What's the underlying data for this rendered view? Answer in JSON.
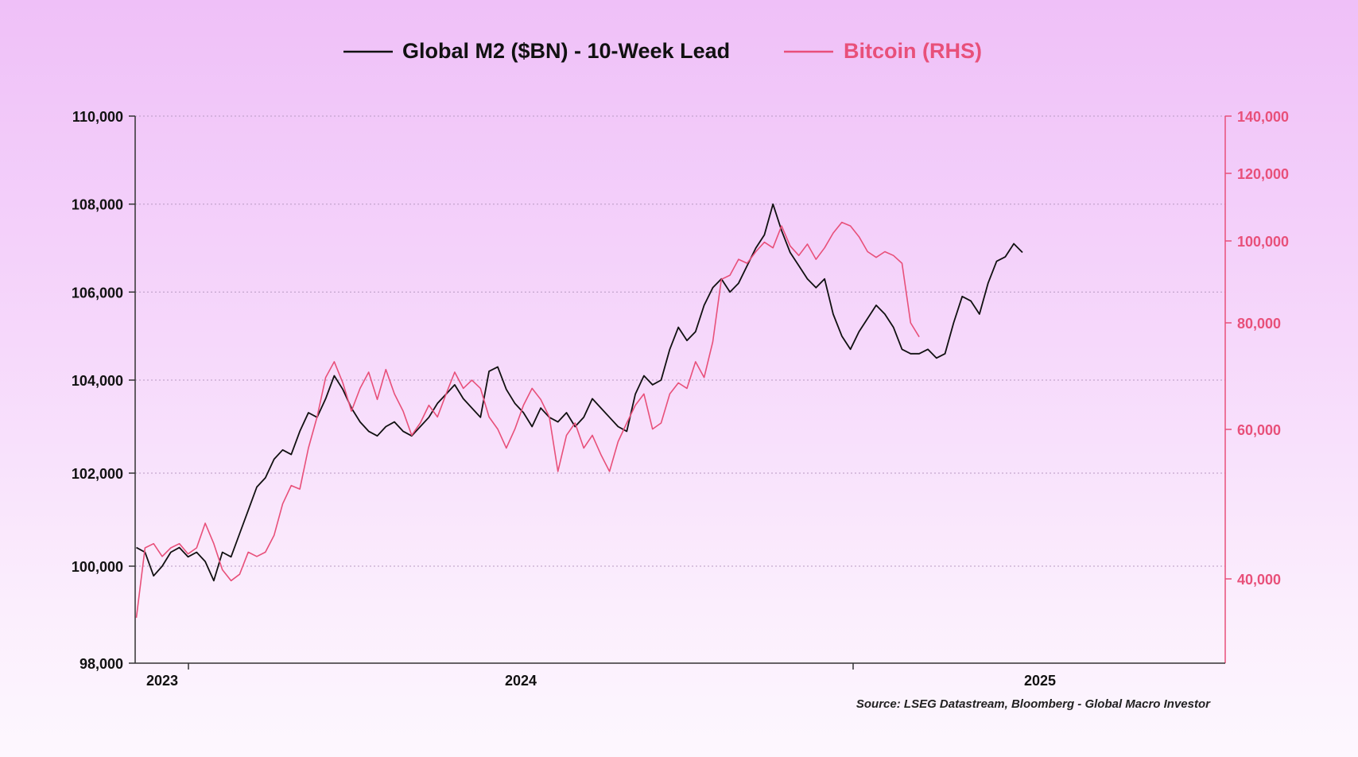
{
  "chart_data": {
    "type": "line",
    "legend": {
      "position": "top-center",
      "items": [
        {
          "label": "Global M2 ($BN) - 10-Week Lead",
          "color": "#111111"
        },
        {
          "label": "Bitcoin (RHS)",
          "color": "#e8507a"
        }
      ]
    },
    "left_axis": {
      "ticks": [
        "110,000",
        "108,000",
        "106,000",
        "104,000",
        "102,000",
        "100,000",
        "98,000"
      ],
      "tick_values": [
        110000,
        108000,
        106000,
        104000,
        102000,
        100000,
        98000
      ],
      "range": [
        98000,
        110000
      ],
      "color": "#111111"
    },
    "right_axis": {
      "scale": "log",
      "ticks": [
        "140,000",
        "120,000",
        "100,000",
        "80,000",
        "60,000",
        "40,000"
      ],
      "tick_values": [
        140000,
        120000,
        100000,
        80000,
        60000,
        40000
      ],
      "range": [
        31000,
        140000
      ],
      "color": "#e8507a"
    },
    "x_axis": {
      "range": [
        "2022-12-15",
        "2025-05-20"
      ],
      "tick_dates": [
        "2023-01-01",
        "2025-01-01"
      ],
      "labels": [
        {
          "text": "2023",
          "date": "2023-01-15"
        },
        {
          "text": "2024",
          "date": "2024-01-01"
        },
        {
          "text": "2025",
          "date": "2025-01-05"
        }
      ]
    },
    "grid": {
      "horizontal": true,
      "style": "dotted"
    },
    "series": [
      {
        "name": "Global M2 ($BN) - 10-Week Lead",
        "axis": "left",
        "color": "#111111",
        "points": [
          [
            "2022-12-16",
            100400
          ],
          [
            "2022-12-23",
            100300
          ],
          [
            "2022-12-30",
            99800
          ],
          [
            "2023-01-06",
            100000
          ],
          [
            "2023-01-13",
            100300
          ],
          [
            "2023-01-20",
            100400
          ],
          [
            "2023-01-27",
            100200
          ],
          [
            "2023-02-03",
            100300
          ],
          [
            "2023-02-10",
            100100
          ],
          [
            "2023-02-17",
            99700
          ],
          [
            "2023-02-24",
            100300
          ],
          [
            "2023-03-03",
            100200
          ],
          [
            "2023-03-10",
            100700
          ],
          [
            "2023-03-17",
            101200
          ],
          [
            "2023-03-24",
            101700
          ],
          [
            "2023-03-31",
            101900
          ],
          [
            "2023-04-07",
            102300
          ],
          [
            "2023-04-14",
            102500
          ],
          [
            "2023-04-21",
            102400
          ],
          [
            "2023-04-28",
            102900
          ],
          [
            "2023-05-05",
            103300
          ],
          [
            "2023-05-12",
            103200
          ],
          [
            "2023-05-19",
            103600
          ],
          [
            "2023-05-26",
            104100
          ],
          [
            "2023-06-02",
            103800
          ],
          [
            "2023-06-09",
            103400
          ],
          [
            "2023-06-16",
            103100
          ],
          [
            "2023-06-23",
            102900
          ],
          [
            "2023-06-30",
            102800
          ],
          [
            "2023-07-07",
            103000
          ],
          [
            "2023-07-14",
            103100
          ],
          [
            "2023-07-21",
            102900
          ],
          [
            "2023-07-28",
            102800
          ],
          [
            "2023-08-04",
            103000
          ],
          [
            "2023-08-11",
            103200
          ],
          [
            "2023-08-18",
            103500
          ],
          [
            "2023-08-25",
            103700
          ],
          [
            "2023-09-01",
            103900
          ],
          [
            "2023-09-08",
            103600
          ],
          [
            "2023-09-15",
            103400
          ],
          [
            "2023-09-22",
            103200
          ],
          [
            "2023-09-29",
            104200
          ],
          [
            "2023-10-06",
            104300
          ],
          [
            "2023-10-13",
            103800
          ],
          [
            "2023-10-20",
            103500
          ],
          [
            "2023-10-27",
            103300
          ],
          [
            "2023-11-03",
            103000
          ],
          [
            "2023-11-10",
            103400
          ],
          [
            "2023-11-17",
            103200
          ],
          [
            "2023-11-24",
            103100
          ],
          [
            "2023-12-01",
            103300
          ],
          [
            "2023-12-08",
            103000
          ],
          [
            "2023-12-15",
            103200
          ],
          [
            "2023-12-22",
            103600
          ],
          [
            "2023-12-29",
            103400
          ],
          [
            "2024-01-05",
            103200
          ],
          [
            "2024-01-12",
            103000
          ],
          [
            "2024-01-19",
            102900
          ],
          [
            "2024-01-26",
            103700
          ],
          [
            "2024-02-02",
            104100
          ],
          [
            "2024-02-09",
            103900
          ],
          [
            "2024-02-16",
            104000
          ],
          [
            "2024-02-23",
            104700
          ],
          [
            "2024-03-01",
            105200
          ],
          [
            "2024-03-08",
            104900
          ],
          [
            "2024-03-15",
            105100
          ],
          [
            "2024-03-22",
            105700
          ],
          [
            "2024-03-29",
            106100
          ],
          [
            "2024-04-05",
            106300
          ],
          [
            "2024-04-12",
            106000
          ],
          [
            "2024-04-19",
            106200
          ],
          [
            "2024-04-26",
            106600
          ],
          [
            "2024-05-03",
            107000
          ],
          [
            "2024-05-10",
            107300
          ],
          [
            "2024-05-17",
            108000
          ],
          [
            "2024-05-24",
            107400
          ],
          [
            "2024-05-31",
            106900
          ],
          [
            "2024-06-07",
            106600
          ],
          [
            "2024-06-14",
            106300
          ],
          [
            "2024-06-21",
            106100
          ],
          [
            "2024-06-28",
            106300
          ],
          [
            "2024-07-05",
            105500
          ],
          [
            "2024-07-12",
            105000
          ],
          [
            "2024-07-19",
            104700
          ],
          [
            "2024-07-26",
            105100
          ],
          [
            "2024-08-02",
            105400
          ],
          [
            "2024-08-09",
            105700
          ],
          [
            "2024-08-16",
            105500
          ],
          [
            "2024-08-23",
            105200
          ],
          [
            "2024-08-30",
            104700
          ],
          [
            "2024-09-06",
            104600
          ],
          [
            "2024-09-13",
            104600
          ],
          [
            "2024-09-20",
            104700
          ],
          [
            "2024-09-27",
            104500
          ],
          [
            "2024-10-04",
            104600
          ],
          [
            "2024-10-11",
            105300
          ],
          [
            "2024-10-18",
            105900
          ],
          [
            "2024-10-25",
            105800
          ],
          [
            "2024-11-01",
            105500
          ],
          [
            "2024-11-08",
            106200
          ],
          [
            "2024-11-15",
            106700
          ],
          [
            "2024-11-22",
            106800
          ],
          [
            "2024-11-29",
            107100
          ],
          [
            "2024-12-06",
            106900
          ]
        ]
      },
      {
        "name": "Bitcoin (RHS)",
        "axis": "right",
        "color": "#e8507a",
        "points": [
          [
            "2022-12-16",
            36000
          ],
          [
            "2022-12-23",
            43500
          ],
          [
            "2022-12-30",
            44000
          ],
          [
            "2023-01-06",
            42500
          ],
          [
            "2023-01-13",
            43500
          ],
          [
            "2023-01-20",
            44000
          ],
          [
            "2023-01-27",
            42800
          ],
          [
            "2023-02-03",
            43500
          ],
          [
            "2023-02-10",
            46500
          ],
          [
            "2023-02-17",
            44000
          ],
          [
            "2023-02-24",
            41000
          ],
          [
            "2023-03-03",
            39800
          ],
          [
            "2023-03-10",
            40500
          ],
          [
            "2023-03-17",
            43000
          ],
          [
            "2023-03-24",
            42500
          ],
          [
            "2023-03-31",
            43000
          ],
          [
            "2023-04-07",
            45000
          ],
          [
            "2023-04-14",
            49000
          ],
          [
            "2023-04-21",
            51500
          ],
          [
            "2023-04-28",
            51000
          ],
          [
            "2023-05-05",
            57000
          ],
          [
            "2023-05-12",
            62000
          ],
          [
            "2023-05-19",
            69000
          ],
          [
            "2023-05-26",
            72000
          ],
          [
            "2023-06-02",
            68000
          ],
          [
            "2023-06-09",
            63000
          ],
          [
            "2023-06-16",
            67000
          ],
          [
            "2023-06-23",
            70000
          ],
          [
            "2023-06-30",
            65000
          ],
          [
            "2023-07-07",
            70500
          ],
          [
            "2023-07-14",
            66000
          ],
          [
            "2023-07-21",
            63000
          ],
          [
            "2023-07-28",
            59000
          ],
          [
            "2023-08-04",
            61000
          ],
          [
            "2023-08-11",
            64000
          ],
          [
            "2023-08-18",
            62000
          ],
          [
            "2023-08-25",
            66000
          ],
          [
            "2023-09-01",
            70000
          ],
          [
            "2023-09-08",
            67000
          ],
          [
            "2023-09-15",
            68500
          ],
          [
            "2023-09-22",
            67000
          ],
          [
            "2023-09-29",
            62000
          ],
          [
            "2023-10-06",
            60000
          ],
          [
            "2023-10-13",
            57000
          ],
          [
            "2023-10-20",
            60000
          ],
          [
            "2023-10-27",
            64000
          ],
          [
            "2023-11-03",
            67000
          ],
          [
            "2023-11-10",
            65000
          ],
          [
            "2023-11-17",
            62000
          ],
          [
            "2023-11-24",
            53500
          ],
          [
            "2023-12-01",
            59000
          ],
          [
            "2023-12-08",
            61000
          ],
          [
            "2023-12-15",
            57000
          ],
          [
            "2023-12-22",
            59000
          ],
          [
            "2023-12-29",
            56000
          ],
          [
            "2024-01-05",
            53500
          ],
          [
            "2024-01-12",
            58000
          ],
          [
            "2024-01-19",
            61000
          ],
          [
            "2024-01-26",
            64000
          ],
          [
            "2024-02-02",
            66000
          ],
          [
            "2024-02-09",
            60000
          ],
          [
            "2024-02-16",
            61000
          ],
          [
            "2024-02-23",
            66000
          ],
          [
            "2024-03-01",
            68000
          ],
          [
            "2024-03-08",
            67000
          ],
          [
            "2024-03-15",
            72000
          ],
          [
            "2024-03-22",
            69000
          ],
          [
            "2024-03-29",
            76000
          ],
          [
            "2024-04-05",
            90000
          ],
          [
            "2024-04-12",
            91000
          ],
          [
            "2024-04-19",
            95000
          ],
          [
            "2024-04-26",
            94000
          ],
          [
            "2024-05-03",
            97000
          ],
          [
            "2024-05-10",
            99500
          ],
          [
            "2024-05-17",
            98000
          ],
          [
            "2024-05-24",
            104000
          ],
          [
            "2024-05-31",
            98500
          ],
          [
            "2024-06-07",
            96000
          ],
          [
            "2024-06-14",
            99000
          ],
          [
            "2024-06-21",
            95000
          ],
          [
            "2024-06-28",
            98000
          ],
          [
            "2024-07-05",
            102000
          ],
          [
            "2024-07-12",
            105000
          ],
          [
            "2024-07-19",
            104000
          ],
          [
            "2024-07-26",
            101000
          ],
          [
            "2024-08-02",
            97000
          ],
          [
            "2024-08-09",
            95500
          ],
          [
            "2024-08-16",
            97000
          ],
          [
            "2024-08-23",
            96000
          ],
          [
            "2024-08-30",
            94000
          ],
          [
            "2024-09-06",
            80000
          ],
          [
            "2024-09-13",
            77000
          ]
        ]
      }
    ],
    "source": "Source: LSEG Datastream, Bloomberg - Global Macro Investor"
  }
}
